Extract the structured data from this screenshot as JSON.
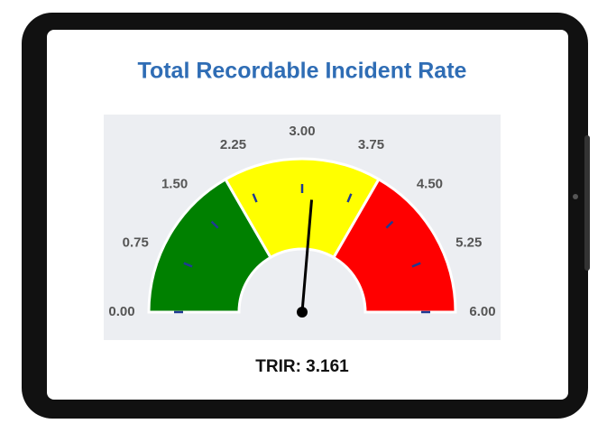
{
  "chart_data": {
    "type": "gauge",
    "title": "Total Recordable Incident Rate",
    "ylim": [
      0,
      6
    ],
    "yticks": [
      {
        "value": 0,
        "label": "0.00"
      },
      {
        "value": 0.75,
        "label": "0.75"
      },
      {
        "value": 1.5,
        "label": "1.50"
      },
      {
        "value": 2.25,
        "label": "2.25"
      },
      {
        "value": 3,
        "label": "3.00"
      },
      {
        "value": 3.75,
        "label": "3.75"
      },
      {
        "value": 4.5,
        "label": "4.50"
      },
      {
        "value": 5.25,
        "label": "5.25"
      },
      {
        "value": 6,
        "label": "6.00"
      }
    ],
    "bands": [
      {
        "from": 0,
        "to": 2,
        "color": "#008000"
      },
      {
        "from": 2,
        "to": 4,
        "color": "#ffff00"
      },
      {
        "from": 4,
        "to": 6,
        "color": "#ff0000"
      }
    ],
    "value": 3.161,
    "value_label": "TRIR: 3.161",
    "needle_color": "#000000",
    "tick_color": "#1f3a93"
  }
}
